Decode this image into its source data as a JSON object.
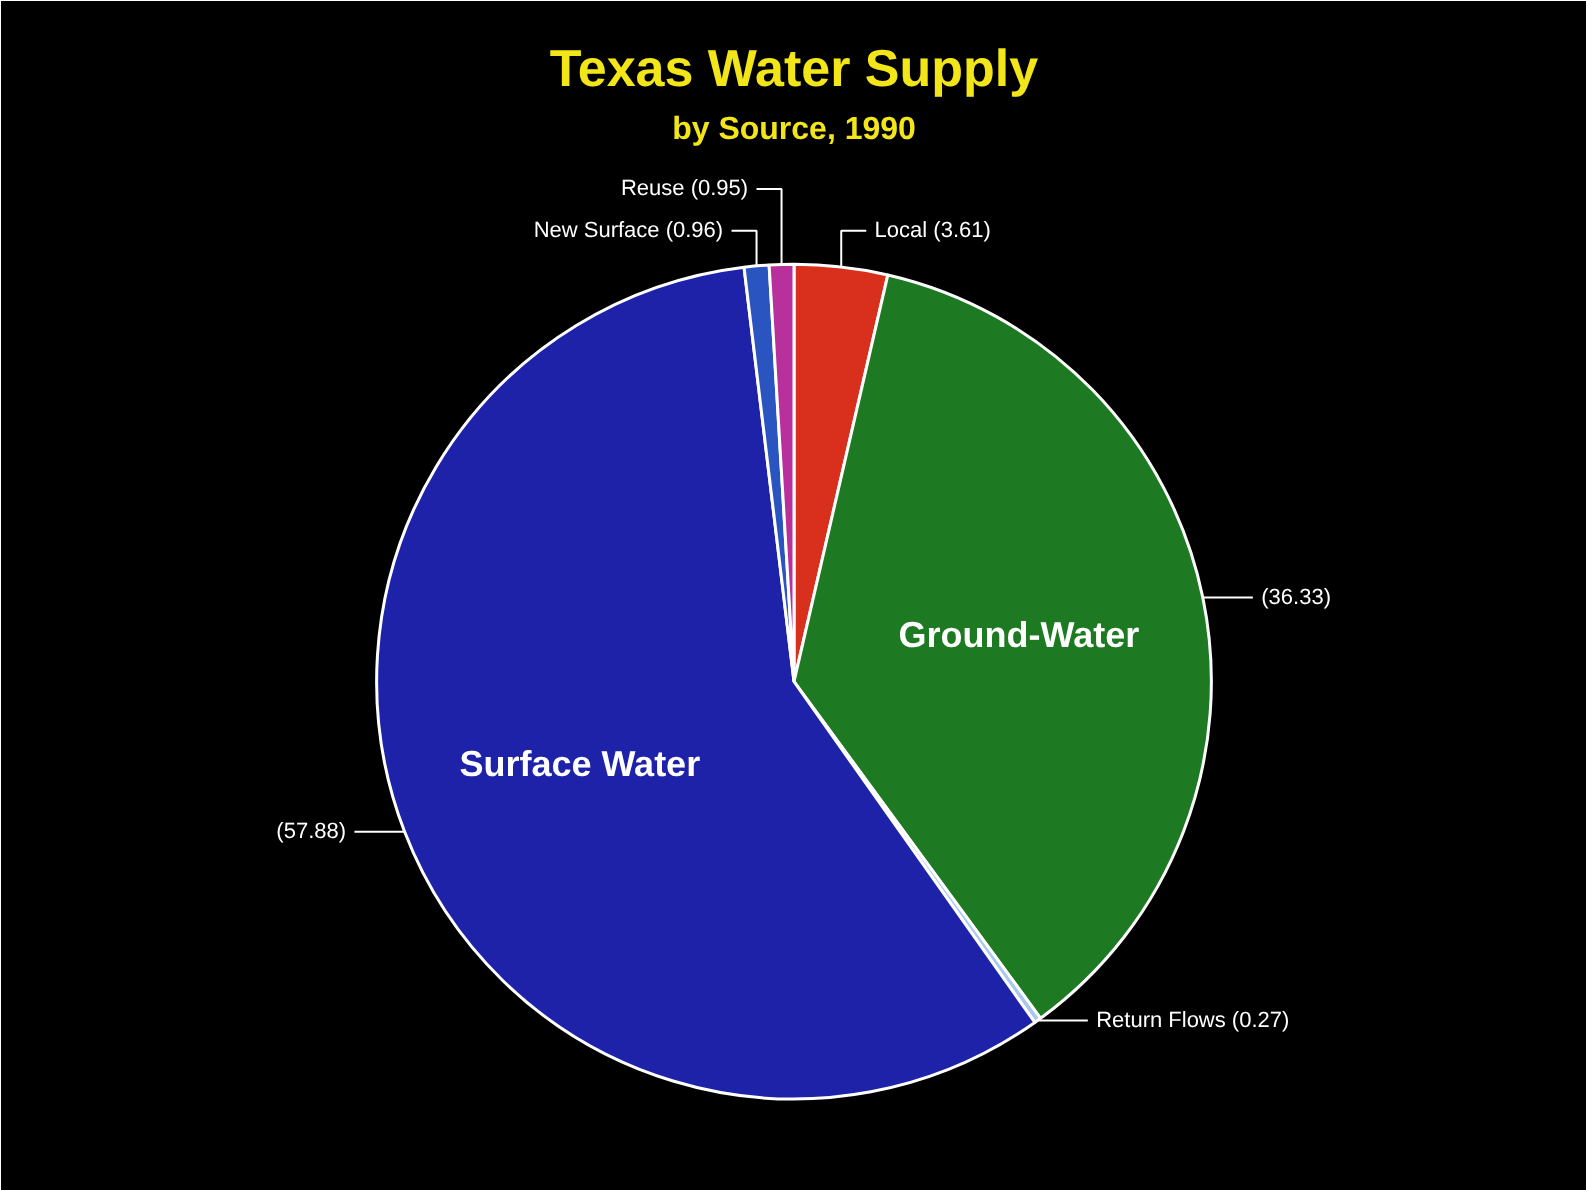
{
  "chart_data": {
    "type": "pie",
    "title": "Texas Water Supply",
    "subtitle": "by Source, 1990",
    "categories": [
      null,
      "Ground-Water",
      null,
      "Surface Water",
      null,
      null
    ],
    "values": [
      3.61,
      36.33,
      0.27,
      57.88,
      0.96,
      0.95
    ],
    "colors": [
      "#d8301c",
      "#1d7a22",
      "#a8c8f0",
      "#1e22a8",
      "#2a55c0",
      "#b8309c"
    ],
    "data_labels": true,
    "value_labels": [
      "Local (3.61)",
      "(36.33)",
      "Return Flows (0.27)",
      "(57.88)",
      "New Surface (0.96)",
      "Reuse (0.95)"
    ]
  }
}
